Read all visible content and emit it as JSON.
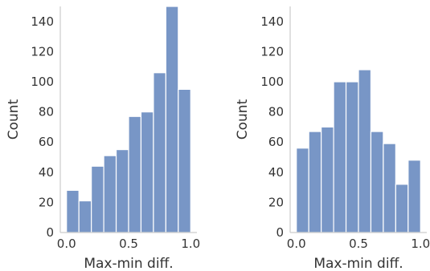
{
  "chart_data": [
    {
      "type": "bar",
      "xlabel": "Max-min diff.",
      "ylabel": "Count",
      "ylim": [
        0,
        150
      ],
      "xlim": [
        -0.05,
        1.05
      ],
      "xticks": [
        "0.0",
        "0.5",
        "1.0"
      ],
      "xtick_values": [
        0,
        0.5,
        1
      ],
      "yticks": [
        "0",
        "20",
        "40",
        "60",
        "80",
        "100",
        "120",
        "140"
      ],
      "ytick_values": [
        0,
        20,
        40,
        60,
        80,
        100,
        120,
        140
      ],
      "bin_width": 0.1,
      "bin_edges": [
        0.0,
        0.1,
        0.2,
        0.3,
        0.4,
        0.5,
        0.6,
        0.7,
        0.8,
        0.9,
        1.0
      ],
      "values": [
        28,
        21,
        44,
        51,
        55,
        77,
        80,
        106,
        150,
        95
      ],
      "bar_color": "#7896c6",
      "grid": false
    },
    {
      "type": "bar",
      "xlabel": "Max-min diff.",
      "ylabel": "Count",
      "ylim": [
        0,
        150
      ],
      "xlim": [
        -0.05,
        1.05
      ],
      "xticks": [
        "0.0",
        "0.5",
        "1.0"
      ],
      "xtick_values": [
        0,
        0.5,
        1
      ],
      "yticks": [
        "0",
        "20",
        "40",
        "60",
        "80",
        "100",
        "120",
        "140"
      ],
      "ytick_values": [
        0,
        20,
        40,
        60,
        80,
        100,
        120,
        140
      ],
      "bin_width": 0.1,
      "bin_edges": [
        0.0,
        0.1,
        0.2,
        0.3,
        0.4,
        0.5,
        0.6,
        0.7,
        0.8,
        0.9,
        1.0
      ],
      "values": [
        56,
        67,
        70,
        100,
        100,
        108,
        67,
        59,
        32,
        48
      ],
      "bar_color": "#7896c6",
      "grid": false
    }
  ]
}
